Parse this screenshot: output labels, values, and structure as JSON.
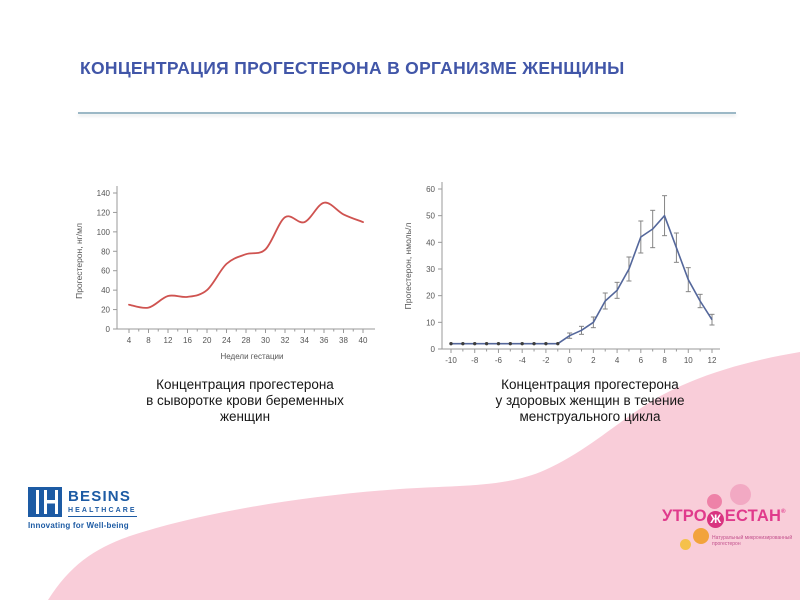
{
  "title": {
    "text": "КОНЦЕНТРАЦИЯ ПРОГЕСТЕРОНА В ОРГАНИЗМЕ ЖЕНЩИНЫ"
  },
  "colors": {
    "title": "#4156a8",
    "divider": "#9cb8c6",
    "pink_wave": "#f9cdd9",
    "besins_blue": "#1d5ba4",
    "utro_magenta": "#e03a8c",
    "axis": "#9a9a9a",
    "tick_text": "#555555",
    "error_bar": "#858585"
  },
  "chart_data": [
    {
      "type": "line",
      "title": "",
      "caption_lines": [
        "Концентрация прогестерона",
        "в сыворотке крови беременных",
        "женщин"
      ],
      "xlabel": "Недели гестации",
      "ylabel": "Прогестерон, нг/мл",
      "categories": [
        4,
        8,
        12,
        16,
        20,
        24,
        28,
        30,
        32,
        34,
        36,
        38,
        40
      ],
      "values": [
        25,
        22,
        34,
        33,
        40,
        67,
        77,
        82,
        115,
        110,
        130,
        118,
        110
      ],
      "y_ticks": [
        0,
        20,
        40,
        60,
        80,
        100,
        120,
        140
      ],
      "ylim": [
        0,
        140
      ],
      "smooth": true,
      "grid": false,
      "legend": "none",
      "line_color": "#cf5350"
    },
    {
      "type": "line",
      "title": "",
      "caption_lines": [
        "Концентрация прогестерона",
        "у здоровых женщин в течение",
        "менструального цикла"
      ],
      "xlabel": "",
      "ylabel": "Прогестерон, нмоль/л",
      "x": [
        -10,
        -9,
        -8,
        -7,
        -6,
        -5,
        -4,
        -3,
        -2,
        -1,
        0,
        1,
        2,
        3,
        4,
        5,
        6,
        7,
        8,
        9,
        10,
        11,
        12
      ],
      "values": [
        2,
        2,
        2,
        2,
        2,
        2,
        2,
        2,
        2,
        2,
        5,
        7,
        10,
        18,
        22,
        30,
        42,
        45,
        50,
        38,
        26,
        18,
        11
      ],
      "errors": [
        0,
        0,
        0,
        0,
        0,
        0,
        0,
        0,
        0,
        0,
        1,
        1.5,
        2,
        3,
        3,
        4.5,
        6,
        7,
        7.5,
        5.5,
        4.5,
        2.5,
        2
      ],
      "x_tick_labels": [
        -10,
        -8,
        -6,
        -4,
        -2,
        0,
        2,
        4,
        6,
        8,
        10,
        12
      ],
      "y_ticks": [
        0,
        10,
        20,
        30,
        40,
        50,
        60
      ],
      "xlim": [
        -10,
        12
      ],
      "ylim": [
        0,
        60
      ],
      "marker_flat_until": -1,
      "smooth": false,
      "grid": false,
      "legend": "none",
      "line_color": "#54679b"
    }
  ],
  "footer": {
    "besins": {
      "name": "BESINS",
      "division": "HEALTHCARE",
      "tagline": "Innovating for Well-being"
    },
    "utrogestan": {
      "brand_pre": "УТРО",
      "brand_zh": "Ж",
      "brand_post": "ЕСТАН",
      "registered": "®",
      "tagline": "Натуральный микронизированный прогестерон"
    }
  }
}
